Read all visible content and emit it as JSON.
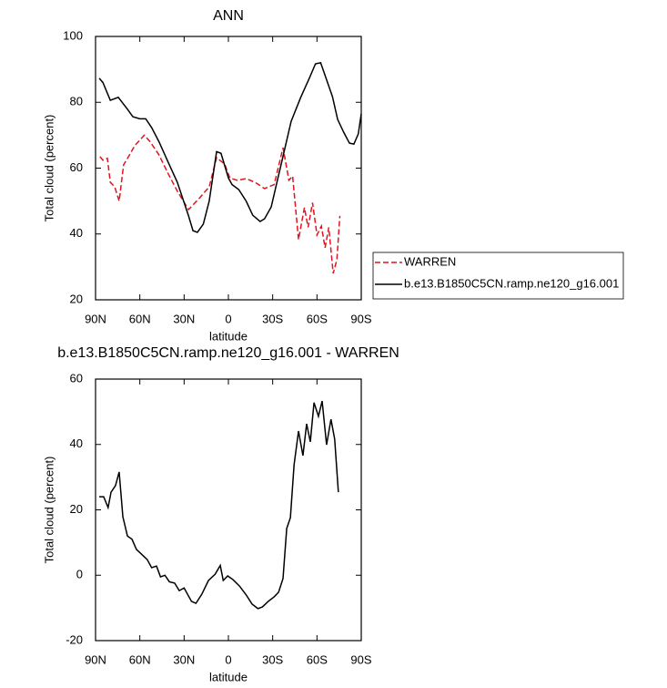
{
  "chart_data": [
    {
      "type": "line",
      "title": "ANN",
      "xlabel": "latitude",
      "ylabel": "Total cloud (percent)",
      "xlim": [
        90,
        -90
      ],
      "xticks": [
        {
          "value": 90,
          "label": "90N"
        },
        {
          "value": 60,
          "label": "60N"
        },
        {
          "value": 30,
          "label": "30N"
        },
        0,
        {
          "value": -30,
          "label": "30S"
        },
        {
          "value": -60,
          "label": "60S"
        },
        {
          "value": -90,
          "label": "90S"
        }
      ],
      "ylim": [
        20,
        100
      ],
      "yticks": [
        20,
        40,
        60,
        80,
        100
      ],
      "legend": "right",
      "series": [
        {
          "name": "WARREN",
          "color": "#e0141e",
          "linestyle": "dashed",
          "x": [
            87,
            85,
            82,
            80,
            77,
            74,
            71,
            67,
            63.5,
            57,
            53,
            47,
            41,
            34.6,
            27,
            20,
            13,
            8,
            2.5,
            -1,
            -6,
            -12,
            -18,
            -24.5,
            -31,
            -37,
            -41,
            -43.5,
            -47.5,
            -51.5,
            -54,
            -57,
            -60,
            -63,
            -65.5,
            -68,
            -71,
            -73.5,
            -75.5
          ],
          "values": [
            63.5,
            62.4,
            63,
            55.7,
            54.3,
            50,
            61,
            64,
            66.8,
            70,
            68,
            64,
            58.5,
            53,
            47.4,
            50.7,
            54.3,
            63.2,
            61.2,
            57,
            56.3,
            56.8,
            55.7,
            53.8,
            55,
            66.2,
            56.3,
            57.6,
            38.3,
            48,
            42,
            49.5,
            39.7,
            42.4,
            35.8,
            42,
            28,
            32.2,
            45.5
          ]
        },
        {
          "name": "b.e13.B1850C5CN.ramp.ne120_g16.001",
          "color": "#000000",
          "linestyle": "solid",
          "x": [
            87.5,
            85,
            80,
            74.6,
            68.4,
            64.7,
            60,
            56,
            52,
            47,
            41,
            34.6,
            27,
            24,
            21,
            17,
            13,
            8,
            5,
            0,
            -2.5,
            -7,
            -12,
            -16.5,
            -21.5,
            -24.5,
            -29,
            -32,
            -36.5,
            -42.5,
            -49,
            -55,
            -59,
            -62.5,
            -66,
            -70.5,
            -74,
            -78,
            -82,
            -85,
            -88,
            -90
          ],
          "values": [
            87.3,
            86,
            80.6,
            81.5,
            77.9,
            75.6,
            75,
            75,
            72.3,
            68,
            62,
            55.7,
            45.5,
            41,
            40.5,
            43,
            50,
            65,
            64.5,
            57,
            55,
            53.5,
            50,
            45.7,
            43.8,
            44.6,
            48.2,
            54,
            62.6,
            74.2,
            81.5,
            87.5,
            91.7,
            92,
            87.5,
            81.7,
            74.8,
            71,
            67.6,
            67.3,
            70.4,
            76.5
          ]
        }
      ]
    },
    {
      "type": "line",
      "title": "b.e13.B1850C5CN.ramp.ne120_g16.001 - WARREN",
      "xlabel": "latitude",
      "ylabel": "Total cloud (percent)",
      "xlim": [
        90,
        -90
      ],
      "xticks": [
        {
          "value": 90,
          "label": "90N"
        },
        {
          "value": 60,
          "label": "60N"
        },
        {
          "value": 30,
          "label": "30N"
        },
        0,
        {
          "value": -30,
          "label": "30S"
        },
        {
          "value": -60,
          "label": "60S"
        },
        {
          "value": -90,
          "label": "90S"
        }
      ],
      "ylim": [
        -20,
        60
      ],
      "yticks": [
        -20,
        0,
        20,
        40,
        60
      ],
      "series": [
        {
          "color": "#000000",
          "linestyle": "solid",
          "x": [
            87.5,
            84.5,
            81.5,
            79.5,
            76.5,
            74,
            71.5,
            68.4,
            65.3,
            62.3,
            59,
            55,
            52,
            48.7,
            46,
            43,
            40,
            36.4,
            33.3,
            30,
            27.7,
            25,
            22,
            18,
            13.5,
            9,
            5.5,
            3.5,
            0.5,
            -3,
            -7.5,
            -12,
            -16,
            -20,
            -23,
            -27,
            -31,
            -34,
            -37,
            -39.5,
            -42,
            -44.5,
            -47.5,
            -50.5,
            -53,
            -55.5,
            -58,
            -61,
            -63.5,
            -66.5,
            -69.5,
            -72,
            -74.5
          ],
          "values": [
            24,
            24,
            20.7,
            25.4,
            27.4,
            31.6,
            17.9,
            12,
            11,
            7.9,
            6.5,
            4.8,
            2.3,
            2.8,
            -0.5,
            0,
            -2,
            -2.4,
            -4.7,
            -3.9,
            -5.8,
            -8,
            -8.6,
            -5.8,
            -1.6,
            0.3,
            3,
            -1.6,
            -0.2,
            -1.3,
            -3.3,
            -6,
            -8.8,
            -10.2,
            -9.7,
            -8,
            -6.6,
            -5.2,
            -1,
            14.3,
            17.6,
            33.8,
            44.1,
            36.6,
            46.3,
            40.8,
            52.8,
            48.6,
            53.3,
            39.9,
            47.7,
            41.6,
            25.4
          ]
        }
      ]
    }
  ]
}
